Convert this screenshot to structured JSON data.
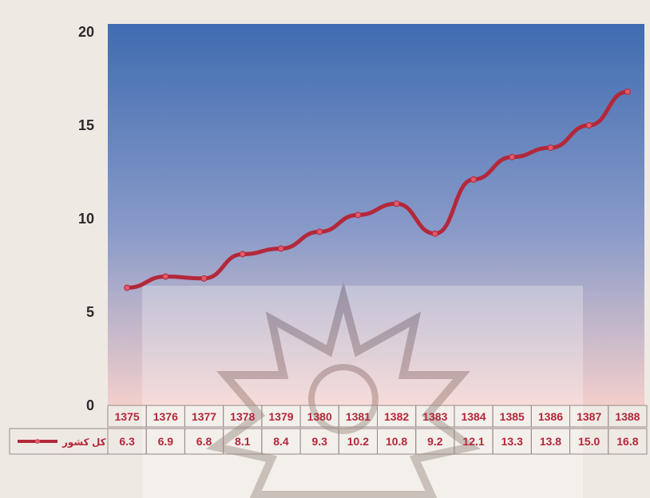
{
  "chart_data": {
    "type": "line",
    "categories": [
      "1375",
      "1376",
      "1377",
      "1378",
      "1379",
      "1380",
      "1381",
      "1382",
      "1383",
      "1384",
      "1385",
      "1386",
      "1387",
      "1388"
    ],
    "series": [
      {
        "name": "کل کشور",
        "values": [
          6.3,
          6.9,
          6.8,
          8.1,
          8.4,
          9.3,
          10.2,
          10.8,
          9.2,
          12.1,
          13.3,
          13.8,
          15.0,
          16.8
        ]
      }
    ],
    "value_labels": [
      "6.3",
      "6.9",
      "6.8",
      "8.1",
      "8.4",
      "9.3",
      "10.2",
      "10.8",
      "9.2",
      "12.1",
      "13.3",
      "13.8",
      "15.0",
      "16.8"
    ],
    "yticks": [
      "0",
      "5",
      "10",
      "15",
      "20"
    ],
    "ylim": [
      0,
      20
    ],
    "grid": false,
    "legend_placement": "bottom-left",
    "colors": {
      "line": "#b3283a",
      "plot_top": "#3f6cb1",
      "plot_bottom": "#f2ccc8"
    }
  }
}
